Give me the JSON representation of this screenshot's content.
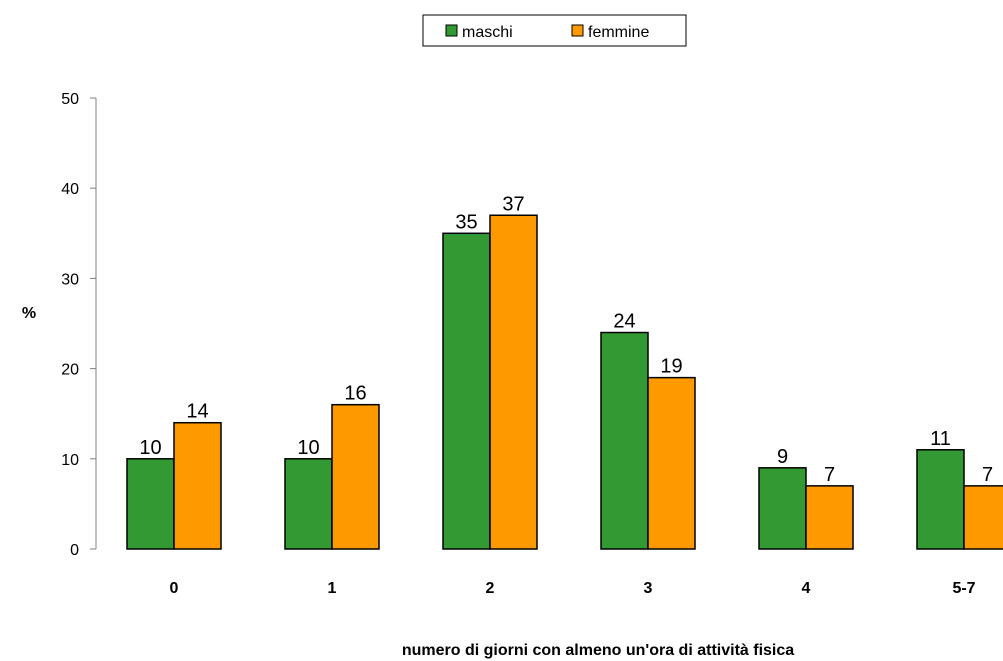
{
  "chart_data": {
    "type": "bar",
    "categories": [
      "0",
      "1",
      "2",
      "3",
      "4",
      "5-7"
    ],
    "series": [
      {
        "name": "maschi",
        "values": [
          10,
          10,
          35,
          24,
          9,
          11
        ],
        "color": "#339933"
      },
      {
        "name": "femmine",
        "values": [
          14,
          16,
          37,
          19,
          7,
          7
        ],
        "color": "#FF9900"
      }
    ],
    "title": "",
    "xlabel": "numero di giorni con almeno un'ora di attività fisica",
    "ylabel": "%",
    "ylim": [
      0,
      50
    ],
    "yticks": [
      0,
      10,
      20,
      30,
      40,
      50
    ],
    "grid": false,
    "legend": "top-center"
  }
}
